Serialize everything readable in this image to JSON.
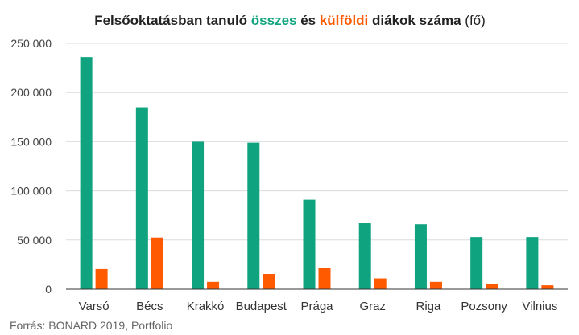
{
  "chart_data": {
    "type": "bar",
    "title": {
      "part1": "Felsőoktatásban tanuló ",
      "part2": "összes",
      "part3": " és ",
      "part4": "külföldi",
      "part5": " diákok száma",
      "part6": " (fő)"
    },
    "categories": [
      "Varsó",
      "Bécs",
      "Krakkó",
      "Budapest",
      "Prága",
      "Graz",
      "Riga",
      "Pozsony",
      "Vilnius"
    ],
    "series": [
      {
        "key": "osszes",
        "color": "#0fa37f",
        "values": [
          236000,
          185000,
          150000,
          149000,
          91000,
          67000,
          66000,
          53000,
          53000
        ]
      },
      {
        "key": "kulfoldi",
        "color": "#ff5a00",
        "values": [
          20500,
          52500,
          7500,
          15500,
          21500,
          11000,
          7500,
          5000,
          4000
        ]
      }
    ],
    "yticks": [
      "0",
      "50 000",
      "100 000",
      "150 000",
      "200 000",
      "250 000"
    ],
    "ylim": [
      0,
      250000
    ],
    "grid": true,
    "source": "Forrás: BONARD 2019, Portfolio"
  },
  "colors": {
    "osszes": "#0fa37f",
    "kulfoldi": "#ff5a00",
    "grid": "#dcdcdc",
    "axis": "#333333"
  }
}
